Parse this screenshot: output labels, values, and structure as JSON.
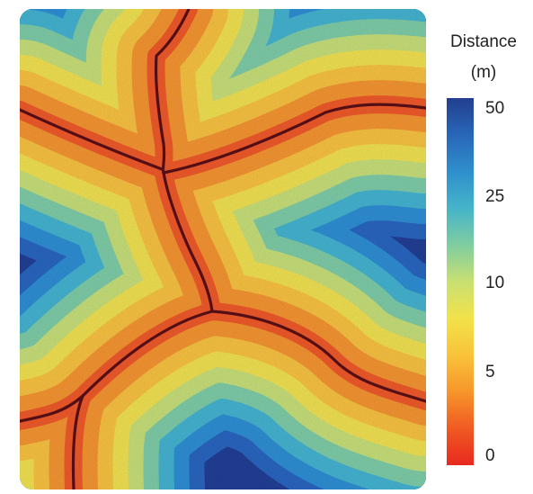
{
  "legend": {
    "title_line1": "Distance",
    "title_line2": "(m)",
    "ticks": [
      {
        "label": "50",
        "value": 50
      },
      {
        "label": "25",
        "value": 25
      },
      {
        "label": "10",
        "value": 10
      },
      {
        "label": "5",
        "value": 5
      },
      {
        "label": "0",
        "value": 0
      }
    ],
    "colors": [
      "#e8291f",
      "#f05a22",
      "#f6962a",
      "#f9c33a",
      "#f2e24a",
      "#c8e072",
      "#7fcda0",
      "#45b4c9",
      "#2f8fcc",
      "#2966b8",
      "#223f8e"
    ]
  },
  "map": {
    "description_layers": "distance-bands",
    "band_colors": [
      "#f05a22",
      "#f6962a",
      "#f9c33a",
      "#f2e24a",
      "#c8e072",
      "#7fcda0",
      "#45b4c9",
      "#2f8fcc",
      "#2966b8"
    ],
    "background_color": "#223f8e",
    "line_color": "#5a0f0f"
  }
}
